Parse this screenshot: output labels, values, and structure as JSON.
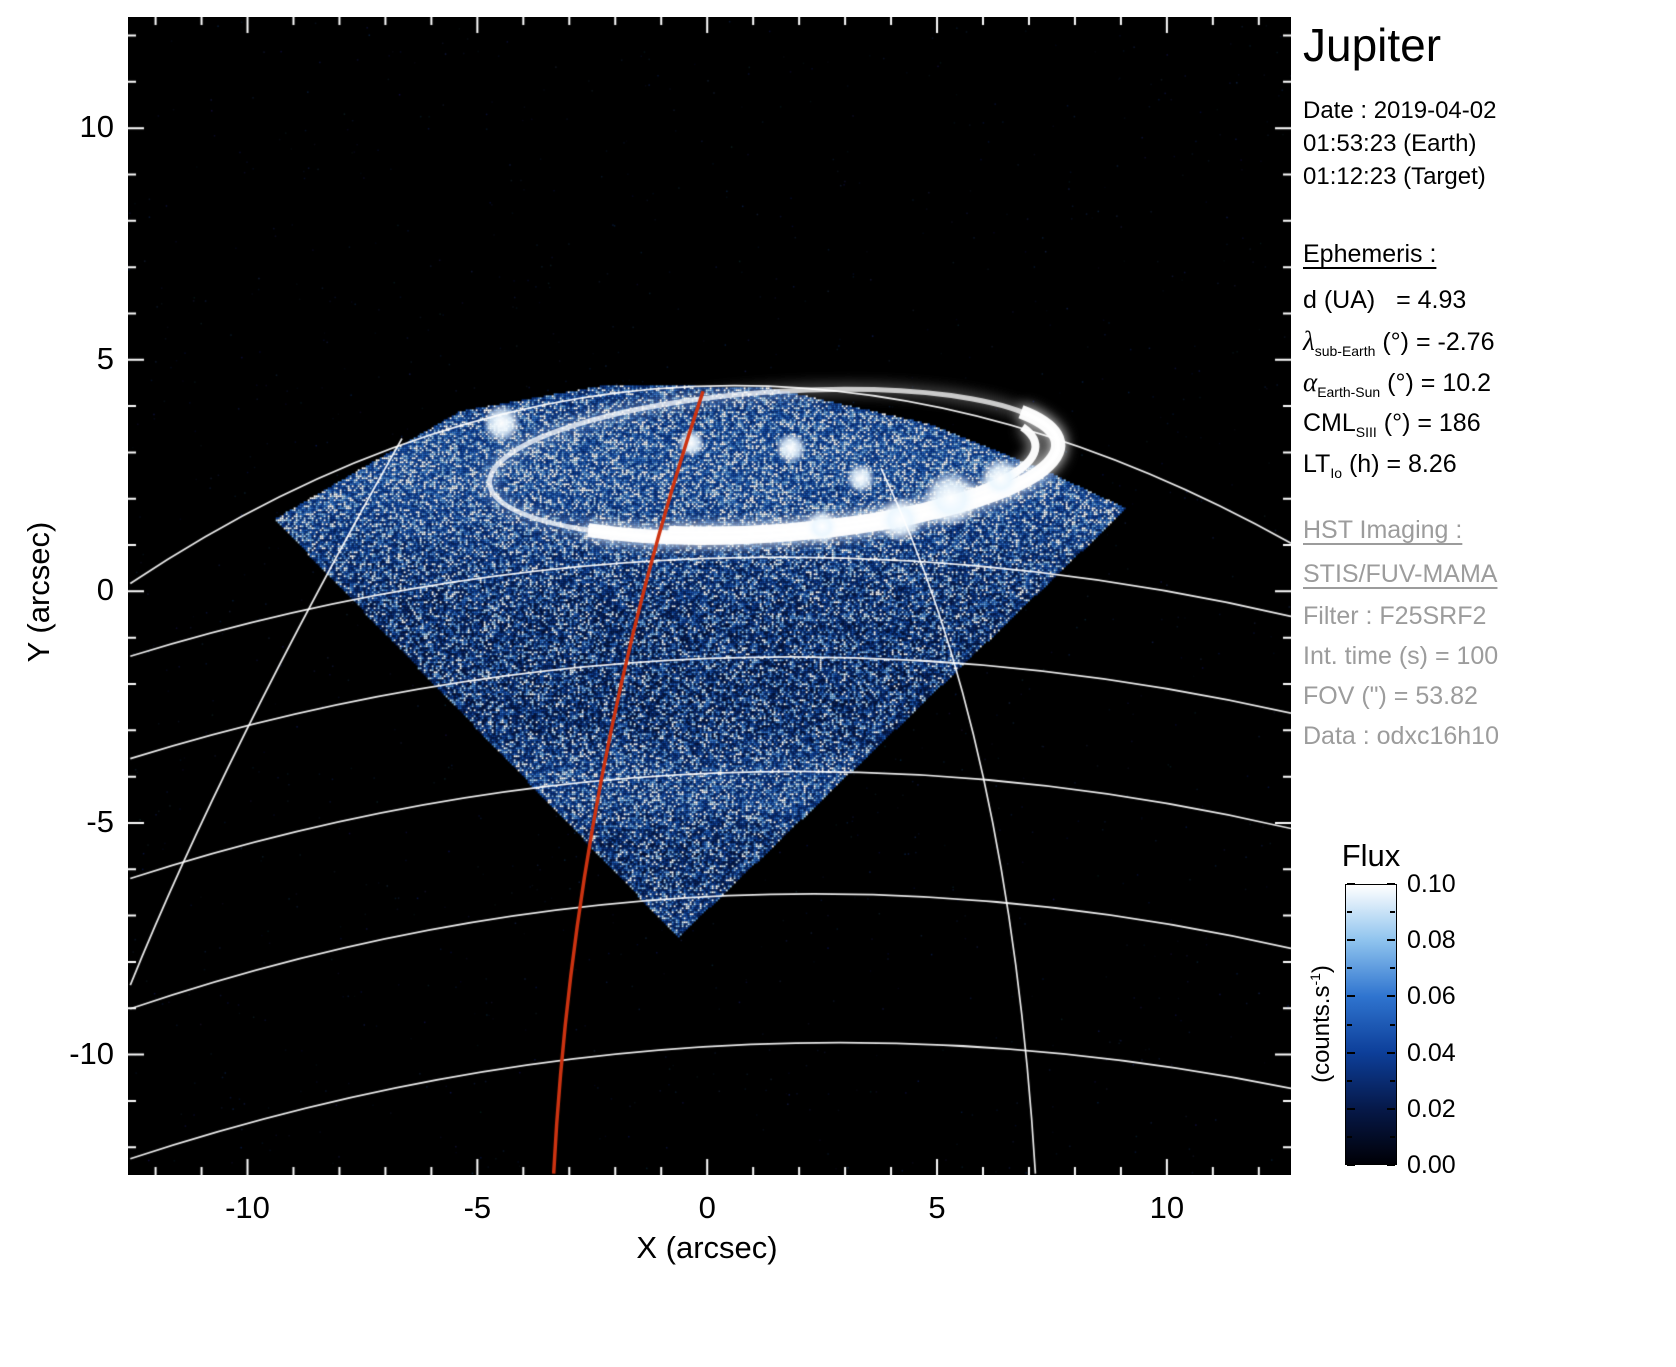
{
  "panel": {
    "title": "Jupiter",
    "date_lines": [
      "Date : 2019-04-02",
      "01:53:23 (Earth)",
      "01:12:23 (Target)"
    ],
    "ephemeris_heading": "Ephemeris :",
    "ephemeris": [
      {
        "sym": "d (UA)",
        "sub": "",
        "rest": "   = 4.93"
      },
      {
        "sym": "λ",
        "sub": "sub-Earth",
        "rest": " (°) = -2.76"
      },
      {
        "sym": "α",
        "sub": "Earth-Sun",
        "rest": " (°) = 10.2"
      },
      {
        "sym": "CML",
        "sub": "SIII",
        "rest": " (°) = 186"
      },
      {
        "sym": "LT",
        "sub": "Io",
        "rest": " (h) = 8.26"
      }
    ],
    "hst_heading": "HST Imaging :",
    "hst_mode": "STIS/FUV-MAMA",
    "hst_lines": [
      "Filter : F25SRF2",
      "Int. time (s) = 100",
      "FOV (\") = 53.82",
      "Data : odxc16h10"
    ]
  },
  "chart_data": {
    "type": "heatmap",
    "title": "Jupiter",
    "xlabel": "X (arcsec)",
    "ylabel": "Y (arcsec)",
    "xlim": [
      -12.6,
      12.7
    ],
    "ylim": [
      -12.6,
      12.4
    ],
    "x_ticks": [
      -10,
      -5,
      0,
      5,
      10
    ],
    "y_ticks": [
      10,
      5,
      0,
      -5,
      -10
    ],
    "background": "#000000",
    "grid": true,
    "colorbar": {
      "title": "Flux",
      "unit_prefix": "(counts.s",
      "unit_sup": "-1",
      "unit_suffix": ")",
      "tick_labels": [
        "0.10",
        "0.08",
        "0.06",
        "0.04",
        "0.02",
        "0.00"
      ],
      "vmin": 0.0,
      "vmax": 0.1,
      "colors": [
        "#000006",
        "#06194a",
        "#0d3f9a",
        "#2f74cf",
        "#8ec3ee",
        "#ffffff"
      ]
    },
    "features": {
      "detector_footprint_arcsec": [
        [
          -9.43,
          1.58
        ],
        [
          -5.39,
          3.91
        ],
        [
          -2.13,
          4.49
        ],
        [
          1.35,
          4.41
        ],
        [
          4.83,
          3.63
        ],
        [
          7.21,
          2.68
        ],
        [
          9.1,
          1.81
        ],
        [
          -0.65,
          -7.45
        ]
      ],
      "aurora_oval": {
        "cx": 1.45,
        "cy": 2.76,
        "rx": 6.2,
        "ry": 1.55,
        "rot_deg": -4
      },
      "bright_patches": [
        {
          "x": -4.47,
          "y": 3.63,
          "r": 0.42
        },
        {
          "x": -0.35,
          "y": 3.2,
          "r": 0.3
        },
        {
          "x": 1.82,
          "y": 3.09,
          "r": 0.34
        },
        {
          "x": 3.34,
          "y": 2.44,
          "r": 0.32
        },
        {
          "x": 5.3,
          "y": 2.01,
          "r": 0.62
        },
        {
          "x": 6.38,
          "y": 2.44,
          "r": 0.45
        },
        {
          "x": 4.2,
          "y": 1.55,
          "r": 0.5
        },
        {
          "x": 2.5,
          "y": 1.4,
          "r": 0.38
        }
      ],
      "lat_arcs": [
        [
          [
            -12.55,
            0.17
          ],
          [
            -0.13,
            4.43
          ],
          [
            12.7,
            1.04
          ]
        ],
        [
          [
            -12.55,
            -1.4
          ],
          [
            0,
            0.71
          ],
          [
            12.7,
            -0.54
          ]
        ],
        [
          [
            -12.55,
            -3.61
          ],
          [
            0,
            -1.45
          ],
          [
            12.7,
            -2.63
          ]
        ],
        [
          [
            -12.55,
            -6.2
          ],
          [
            0,
            -3.93
          ],
          [
            12.7,
            -5.12
          ]
        ],
        [
          [
            -12.55,
            -9.01
          ],
          [
            0,
            -6.59
          ],
          [
            12.7,
            -7.71
          ]
        ],
        [
          [
            -12.55,
            -12.25
          ],
          [
            0,
            -9.83
          ],
          [
            12.7,
            -10.73
          ]
        ]
      ],
      "meridians": [
        [
          [
            3.78,
            2.66
          ],
          [
            6.01,
            -4.03
          ],
          [
            7.14,
            -12.57
          ]
        ],
        [
          [
            -6.64,
            3.3
          ],
          [
            -10.05,
            -3.05
          ],
          [
            -12.55,
            -8.5
          ]
        ]
      ],
      "cml_path": [
        [
          -0.09,
          4.32
        ],
        [
          -2.3,
          -4.05
        ],
        [
          -3.34,
          -12.57
        ]
      ],
      "cml_color": "#cc3311",
      "grid_color": "#ffffff"
    }
  }
}
